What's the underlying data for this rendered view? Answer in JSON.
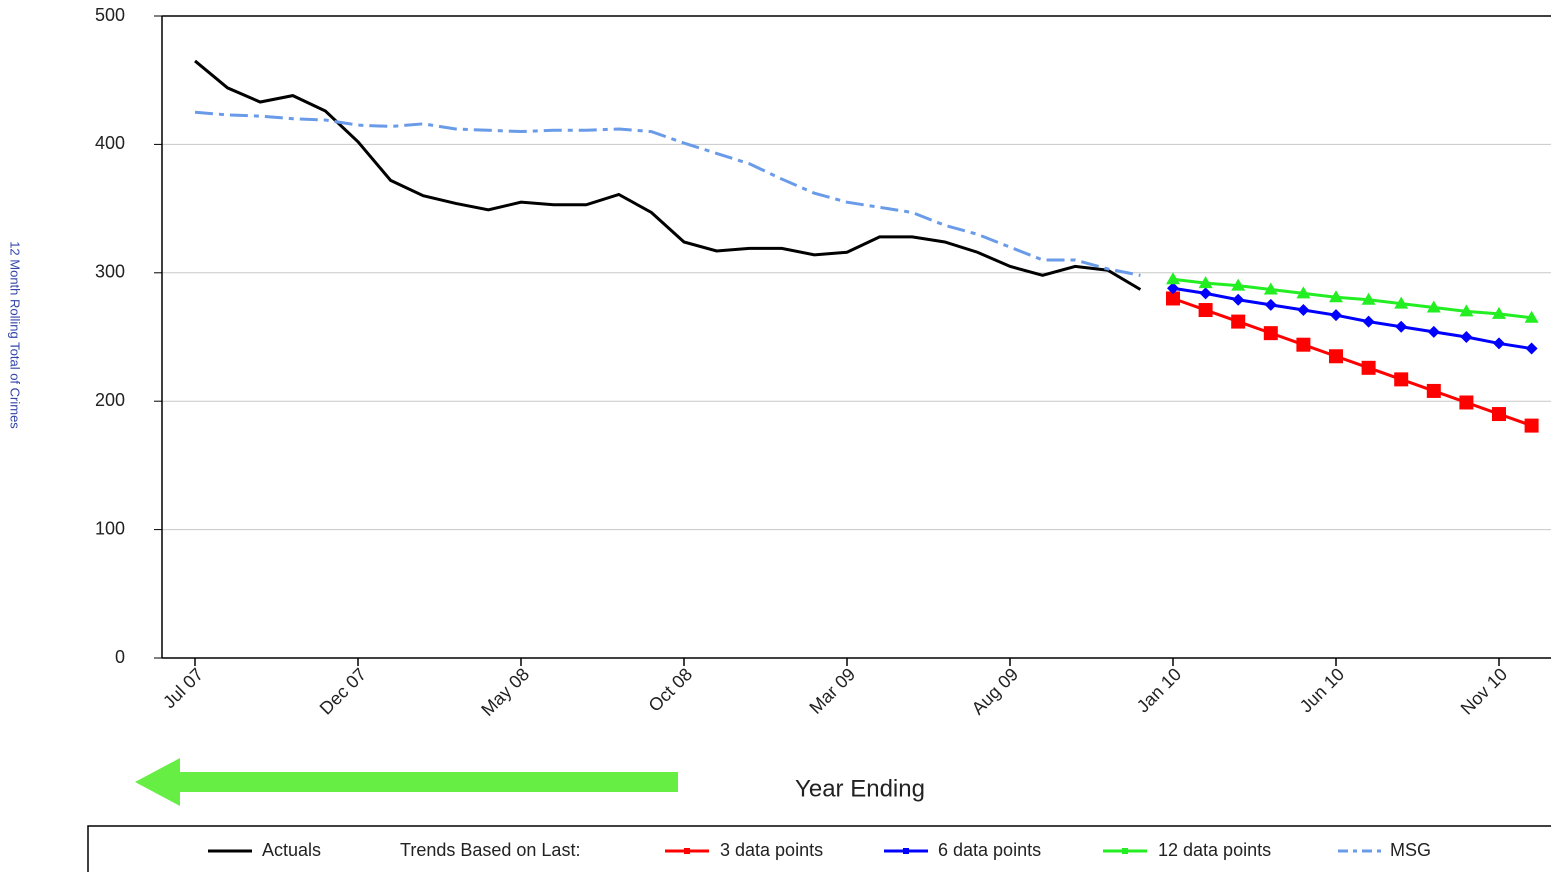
{
  "chart_data": {
    "type": "line",
    "y_axis_label": "12 Month Rolling Total of Crimes",
    "x_axis_label": "Year Ending",
    "legend_prefix": "Trends Based on Last:",
    "categories": [
      "Jul 07",
      null,
      null,
      null,
      null,
      "Dec 07",
      null,
      null,
      null,
      null,
      "May 08",
      null,
      null,
      null,
      null,
      "Oct 08",
      null,
      null,
      null,
      null,
      "Mar 09",
      null,
      null,
      null,
      null,
      "Aug 09",
      null,
      null,
      null,
      null,
      "Jan 10",
      null,
      null,
      null,
      null,
      "Jun 10",
      null,
      null,
      null,
      null,
      "Nov 10",
      null
    ],
    "ylim": [
      0,
      500
    ],
    "yticks": [
      0,
      100,
      200,
      300,
      400,
      500
    ],
    "grid": true,
    "series": [
      {
        "name": "Actuals",
        "color": "#000000",
        "marker": "none",
        "dash": false,
        "values": [
          465,
          444,
          433,
          438,
          426,
          402,
          372,
          360,
          354,
          349,
          355,
          353,
          353,
          361,
          347,
          324,
          317,
          319,
          319,
          314,
          316,
          328,
          328,
          324,
          316,
          305,
          298,
          305,
          302,
          287,
          null,
          null,
          null,
          null,
          null,
          null,
          null,
          null,
          null,
          null,
          null,
          null
        ]
      },
      {
        "name": "3 data points",
        "color": "#ff0000",
        "marker": "square",
        "dash": false,
        "values": [
          null,
          null,
          null,
          null,
          null,
          null,
          null,
          null,
          null,
          null,
          null,
          null,
          null,
          null,
          null,
          null,
          null,
          null,
          null,
          null,
          null,
          null,
          null,
          null,
          null,
          null,
          null,
          null,
          null,
          null,
          280,
          271,
          262,
          253,
          244,
          235,
          226,
          217,
          208,
          199,
          190,
          181
        ]
      },
      {
        "name": "6 data points",
        "color": "#0000ff",
        "marker": "diamond",
        "dash": false,
        "values": [
          null,
          null,
          null,
          null,
          null,
          null,
          null,
          null,
          null,
          null,
          null,
          null,
          null,
          null,
          null,
          null,
          null,
          null,
          null,
          null,
          null,
          null,
          null,
          null,
          null,
          null,
          null,
          null,
          null,
          null,
          288,
          284,
          279,
          275,
          271,
          267,
          262,
          258,
          254,
          250,
          245,
          241
        ]
      },
      {
        "name": "12 data points",
        "color": "#22ee22",
        "marker": "triangle",
        "dash": false,
        "values": [
          null,
          null,
          null,
          null,
          null,
          null,
          null,
          null,
          null,
          null,
          null,
          null,
          null,
          null,
          null,
          null,
          null,
          null,
          null,
          null,
          null,
          null,
          null,
          null,
          null,
          null,
          null,
          null,
          null,
          null,
          295,
          292,
          290,
          287,
          284,
          281,
          279,
          276,
          273,
          270,
          268,
          265
        ]
      },
      {
        "name": "MSG",
        "color": "#6a9be8",
        "marker": "none",
        "dash": true,
        "values": [
          425,
          423,
          422,
          420,
          419,
          415,
          414,
          416,
          412,
          411,
          410,
          411,
          411,
          412,
          410,
          401,
          393,
          385,
          373,
          362,
          355,
          351,
          347,
          337,
          330,
          320,
          310,
          310,
          303,
          298,
          null,
          null,
          null,
          null,
          null,
          null,
          null,
          null,
          null,
          null,
          null,
          null
        ]
      }
    ]
  }
}
